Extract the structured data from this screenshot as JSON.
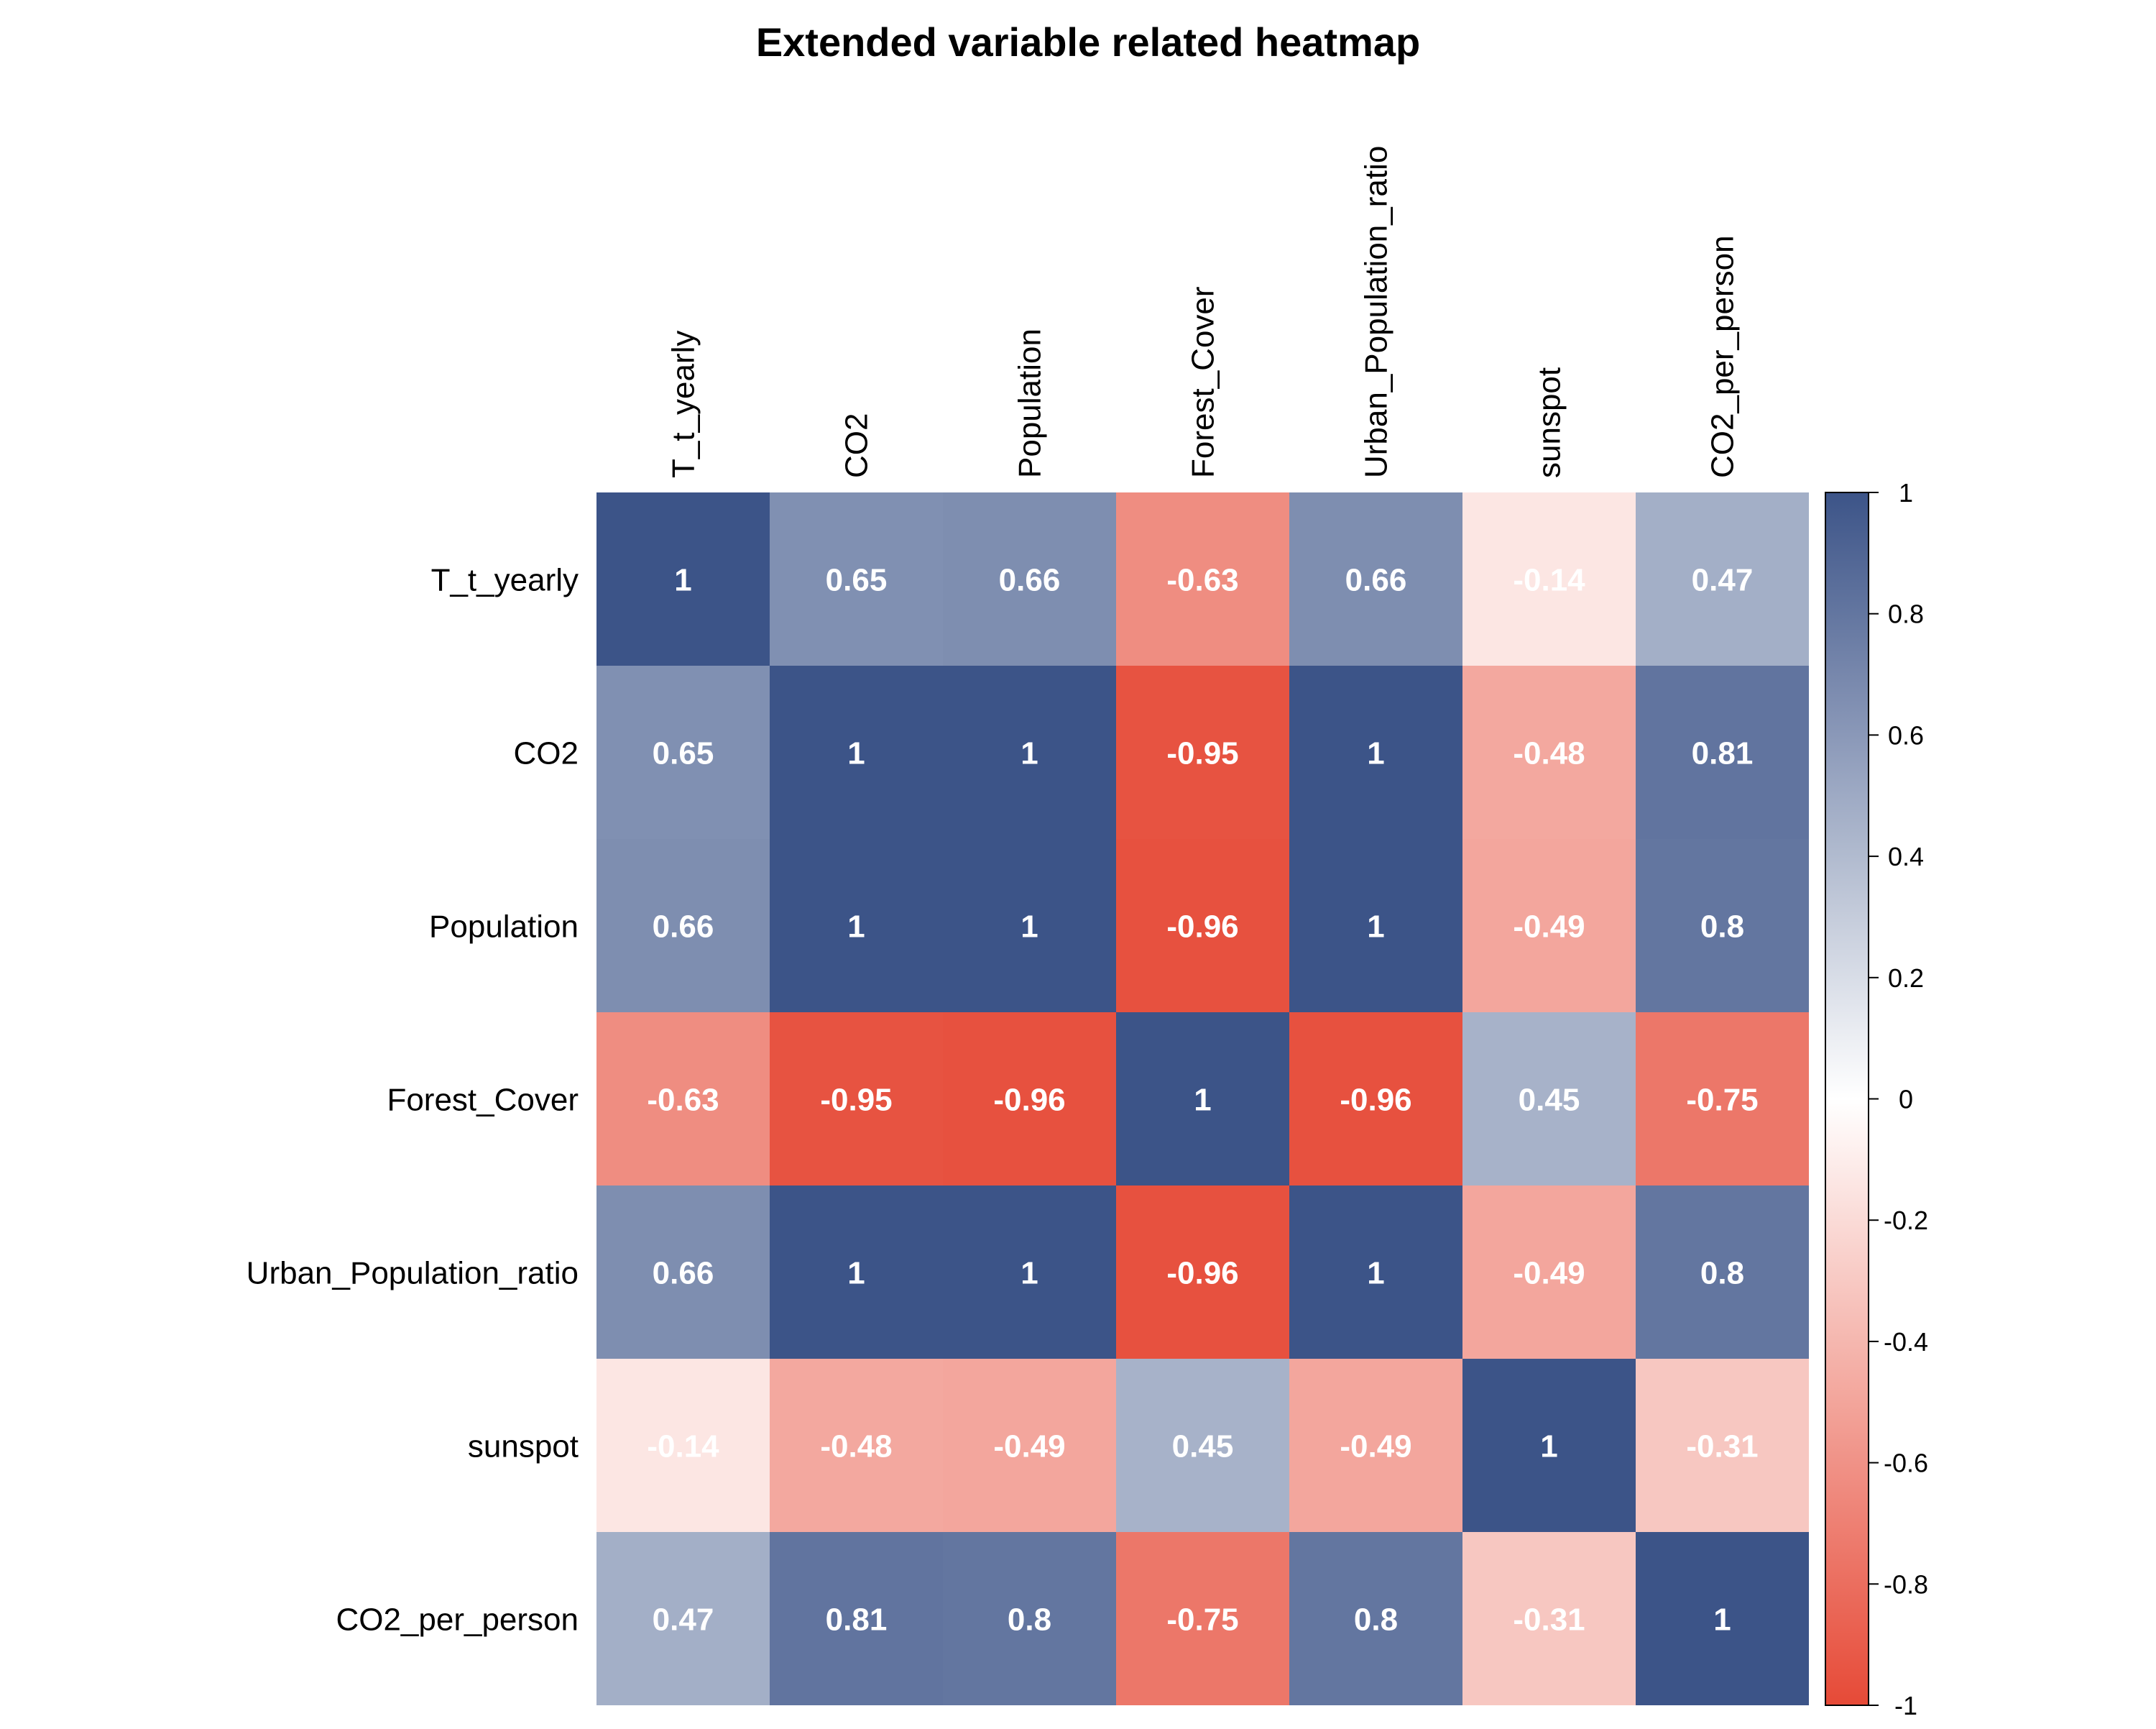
{
  "chart_data": {
    "type": "heatmap",
    "title": "Extended variable related heatmap",
    "row_labels": [
      "T_t_yearly",
      "CO2",
      "Population",
      "Forest_Cover",
      "Urban_Population_ratio",
      "sunspot",
      "CO2_per_person"
    ],
    "col_labels": [
      "T_t_yearly",
      "CO2",
      "Population",
      "Forest_Cover",
      "Urban_Population_ratio",
      "sunspot",
      "CO2_per_person"
    ],
    "values": [
      [
        1,
        0.65,
        0.66,
        -0.63,
        0.66,
        -0.14,
        0.47
      ],
      [
        0.65,
        1,
        1,
        -0.95,
        1,
        -0.48,
        0.81
      ],
      [
        0.66,
        1,
        1,
        -0.96,
        1,
        -0.49,
        0.8
      ],
      [
        -0.63,
        -0.95,
        -0.96,
        1,
        -0.96,
        0.45,
        -0.75
      ],
      [
        0.66,
        1,
        1,
        -0.96,
        1,
        -0.49,
        0.8
      ],
      [
        -0.14,
        -0.48,
        -0.49,
        0.45,
        -0.49,
        1,
        -0.31
      ],
      [
        0.47,
        0.81,
        0.8,
        -0.75,
        0.8,
        -0.31,
        1
      ]
    ],
    "value_range": [
      -1,
      1
    ],
    "colorbar": {
      "ticks": [
        1,
        0.8,
        0.6,
        0.4,
        0.2,
        0,
        -0.2,
        -0.4,
        -0.6,
        -0.8,
        -1
      ],
      "tick_labels": [
        "1",
        "0.8",
        "0.6",
        "0.4",
        "0.2",
        "0",
        "-0.2",
        "-0.4",
        "-0.6",
        "-0.8",
        "-1"
      ],
      "placement": "right"
    },
    "colors": {
      "low": "#e64a37",
      "mid": "#ffffff",
      "high": "#3c5488",
      "cell_text": "#ffffff",
      "label_text": "#000000"
    },
    "grid": false
  }
}
